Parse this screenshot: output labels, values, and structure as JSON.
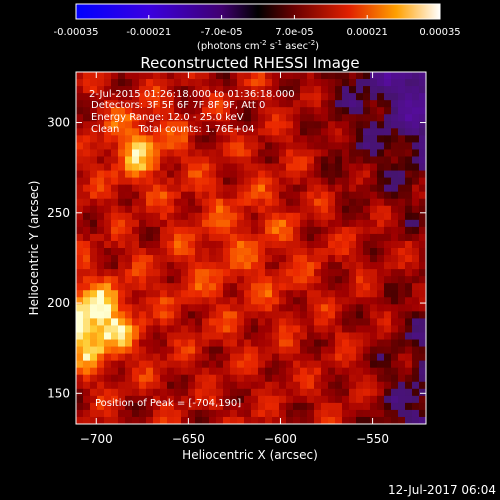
{
  "colorbar": {
    "tick_labels": [
      "-0.00035",
      "-0.00021",
      "-7.0e-05",
      "7.0e-05",
      "0.00021",
      "0.00035"
    ],
    "tick_values": [
      -0.00035,
      -0.00021,
      -7e-05,
      7e-05,
      0.00021,
      0.00035
    ],
    "range": [
      -0.00035,
      0.00035
    ],
    "units_base": "(photons cm",
    "units_exp1": "-2",
    "units_mid": " s",
    "units_exp2": "-1",
    "units_end": " asec",
    "units_exp3": "-2",
    "units_close": ")"
  },
  "chart_data": {
    "type": "heatmap",
    "title": "Reconstructed RHESSI Image",
    "xlabel": "Heliocentric X (arcsec)",
    "ylabel": "Heliocentric Y (arcsec)",
    "xlim": [
      -711,
      -521
    ],
    "ylim": [
      133,
      328
    ],
    "xticks": [
      -700,
      -650,
      -600,
      -550
    ],
    "xtick_labels": [
      "−700",
      "−650",
      "−600",
      "−550"
    ],
    "yticks": [
      150,
      200,
      250,
      300
    ],
    "ytick_labels": [
      "150",
      "200",
      "250",
      "300"
    ],
    "peak": [
      -704,
      190
    ],
    "annotations": [
      "2-Jul-2015 01:26:18.000 to 01:36:18.000",
      "Detectors: 3F 5F 6F 7F 8F 9F, Att 0",
      "Energy Range: 12.0 - 25.0 keV",
      "Clean      Total counts: 1.76E+04",
      "Position of Peak = [-704,190]"
    ]
  },
  "footer": {
    "date": "12-Jul-2017 06:04"
  }
}
